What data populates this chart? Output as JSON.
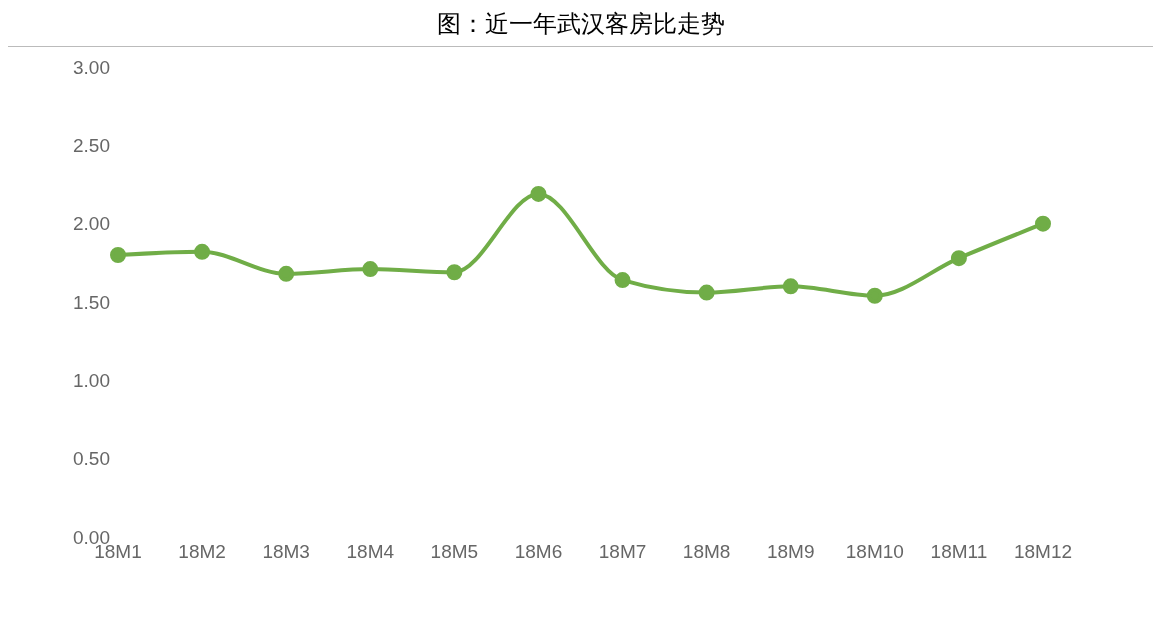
{
  "chart_data": {
    "type": "line",
    "title": "图：近一年武汉客房比走势",
    "categories": [
      "18M1",
      "18M2",
      "18M3",
      "18M4",
      "18M5",
      "18M6",
      "18M7",
      "18M8",
      "18M9",
      "18M10",
      "18M11",
      "18M12"
    ],
    "series": [
      {
        "color": "#70ad47",
        "values": [
          1.8,
          1.82,
          1.68,
          1.71,
          1.69,
          2.19,
          1.64,
          1.56,
          1.6,
          1.54,
          1.78,
          2.0
        ]
      }
    ],
    "ylim": [
      0,
      3
    ],
    "yticks": [
      {
        "value": 0,
        "label": "0.00"
      },
      {
        "value": 0.5,
        "label": "0.50"
      },
      {
        "value": 1,
        "label": "1.00"
      },
      {
        "value": 1.5,
        "label": "1.50"
      },
      {
        "value": 2,
        "label": "2.00"
      },
      {
        "value": 2.5,
        "label": "2.50"
      },
      {
        "value": 3,
        "label": "3.00"
      }
    ],
    "grid": false,
    "legend": false,
    "marker": "circle",
    "line_style": "solid"
  }
}
